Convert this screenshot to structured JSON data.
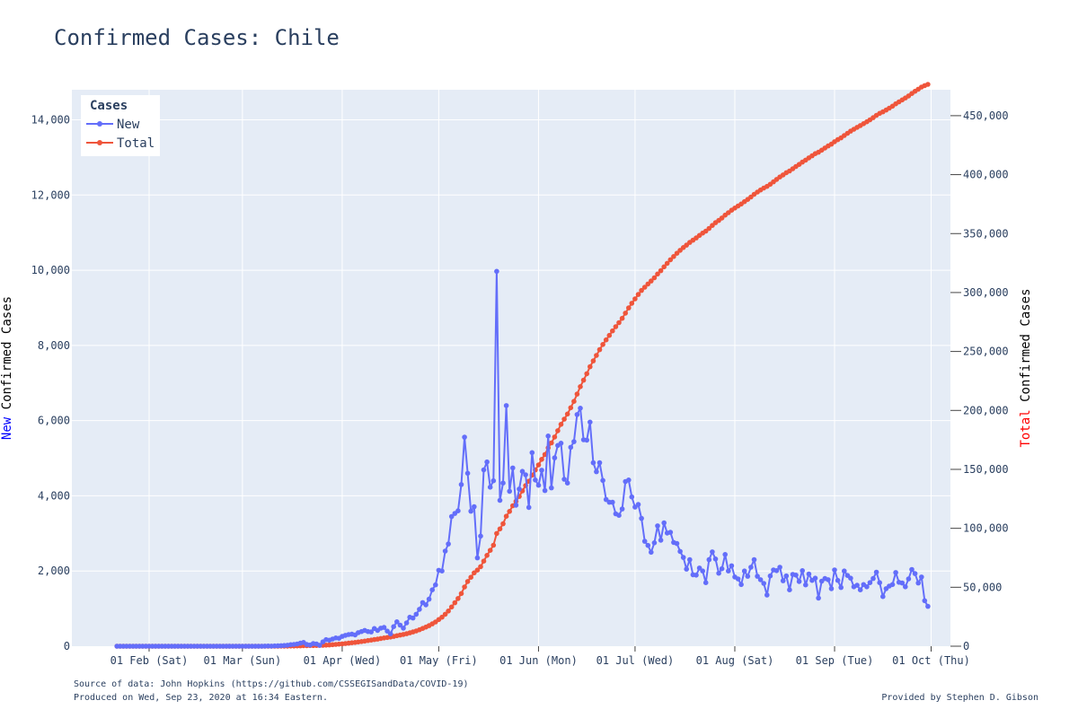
{
  "title": "Confirmed Cases: Chile",
  "footer": {
    "source": "Source of data: John Hopkins (https://github.com/CSSEGISandData/COVID-19)",
    "produced": "Produced on Wed, Sep 23, 2020 at 16:34 Eastern.",
    "provided": "Provided by Stephen D. Gibson"
  },
  "colors": {
    "new": "#636efa",
    "total": "#ef553b",
    "plot_bg": "#e5ecf6",
    "grid": "#ffffff",
    "text": "#2a3f5f"
  },
  "chart_data": {
    "type": "line",
    "title": "Confirmed Cases: Chile",
    "x_axis": {
      "tick_labels": [
        "01 Feb (Sat)",
        "01 Mar (Sun)",
        "01 Apr (Wed)",
        "01 May (Fri)",
        "01 Jun (Mon)",
        "01 Jul (Wed)",
        "01 Aug (Sat)",
        "01 Sep (Tue)",
        "01 Oct (Thu)"
      ],
      "tick_dates": [
        "2020-02-01",
        "2020-03-01",
        "2020-04-01",
        "2020-05-01",
        "2020-06-01",
        "2020-07-01",
        "2020-08-01",
        "2020-09-01",
        "2020-10-01"
      ],
      "range": [
        "2020-01-08",
        "2020-10-07"
      ]
    },
    "y_left": {
      "label_colored": "New",
      "label_rest": " Confirmed Cases",
      "range": [
        0,
        14800
      ],
      "ticks": [
        0,
        2000,
        4000,
        6000,
        8000,
        10000,
        12000,
        14000
      ],
      "tick_labels": [
        "0",
        "2,000",
        "4,000",
        "6,000",
        "8,000",
        "10,000",
        "12,000",
        "14,000"
      ]
    },
    "y_right": {
      "label_colored": "Total",
      "label_rest": " Confirmed Cases",
      "range": [
        0,
        472000
      ],
      "ticks": [
        0,
        50000,
        100000,
        150000,
        200000,
        250000,
        300000,
        350000,
        400000,
        450000
      ],
      "tick_labels": [
        "0",
        "50,000",
        "100,000",
        "150,000",
        "200,000",
        "250,000",
        "300,000",
        "350,000",
        "400,000",
        "450,000"
      ]
    },
    "legend": {
      "title": "Cases",
      "position": "top-left"
    },
    "grid": true,
    "series": [
      {
        "name": "New",
        "axis": "left",
        "start_date": "2020-01-22",
        "values": [
          0,
          0,
          0,
          0,
          0,
          0,
          0,
          0,
          0,
          0,
          0,
          0,
          0,
          0,
          0,
          0,
          0,
          0,
          0,
          0,
          0,
          0,
          0,
          0,
          0,
          0,
          0,
          0,
          0,
          0,
          0,
          0,
          0,
          0,
          0,
          0,
          0,
          0,
          0,
          0,
          1,
          0,
          1,
          1,
          0,
          0,
          3,
          5,
          3,
          7,
          10,
          14,
          20,
          27,
          40,
          48,
          60,
          80,
          100,
          45,
          30,
          72,
          60,
          25,
          115,
          175,
          160,
          190,
          220,
          210,
          260,
          290,
          310,
          320,
          300,
          360,
          390,
          420,
          390,
          380,
          470,
          420,
          480,
          500,
          400,
          330,
          520,
          650,
          560,
          480,
          620,
          770,
          750,
          850,
          980,
          1160,
          1100,
          1250,
          1500,
          1630,
          2020,
          2000,
          2530,
          2720,
          3450,
          3530,
          3600,
          4300,
          5560,
          4600,
          3590,
          3710,
          2350,
          2930,
          4690,
          4900,
          4230,
          4400,
          9970,
          3880,
          4340,
          6400,
          4120,
          4740,
          3750,
          4180,
          4650,
          4560,
          3690,
          5150,
          4420,
          4280,
          4680,
          4140,
          5590,
          4210,
          5010,
          5340,
          5400,
          4440,
          4340,
          5290,
          5440,
          6160,
          6330,
          5490,
          5480,
          5960,
          4880,
          4640,
          4880,
          4410,
          3900,
          3830,
          3830,
          3520,
          3480,
          3650,
          4380,
          4420,
          3970,
          3700,
          3770,
          3400,
          2790,
          2680,
          2500,
          2750,
          3200,
          2820,
          3280,
          3010,
          3030,
          2760,
          2730,
          2520,
          2360,
          2050,
          2300,
          1900,
          1890,
          2080,
          2000,
          1690,
          2300,
          2510,
          2320,
          1940,
          2060,
          2440,
          2000,
          2140,
          1840,
          1790,
          1640,
          2000,
          1860,
          2100,
          2300,
          1860,
          1770,
          1670,
          1360,
          1870,
          2030,
          2010,
          2100,
          1740,
          1870,
          1500,
          1910,
          1890,
          1720,
          2010,
          1630,
          1920,
          1750,
          1810,
          1280,
          1730,
          1800,
          1770,
          1530,
          2030,
          1750,
          1560,
          2000,
          1880,
          1810,
          1580,
          1620,
          1500,
          1640,
          1580,
          1690,
          1800,
          1970,
          1690,
          1320,
          1530,
          1600,
          1640,
          1960,
          1700,
          1680,
          1580,
          1790,
          2040,
          1930,
          1680,
          1840,
          1210,
          1060
        ]
      },
      {
        "name": "Total",
        "axis": "right",
        "start_date": "2020-01-22",
        "values": []
      }
    ]
  }
}
